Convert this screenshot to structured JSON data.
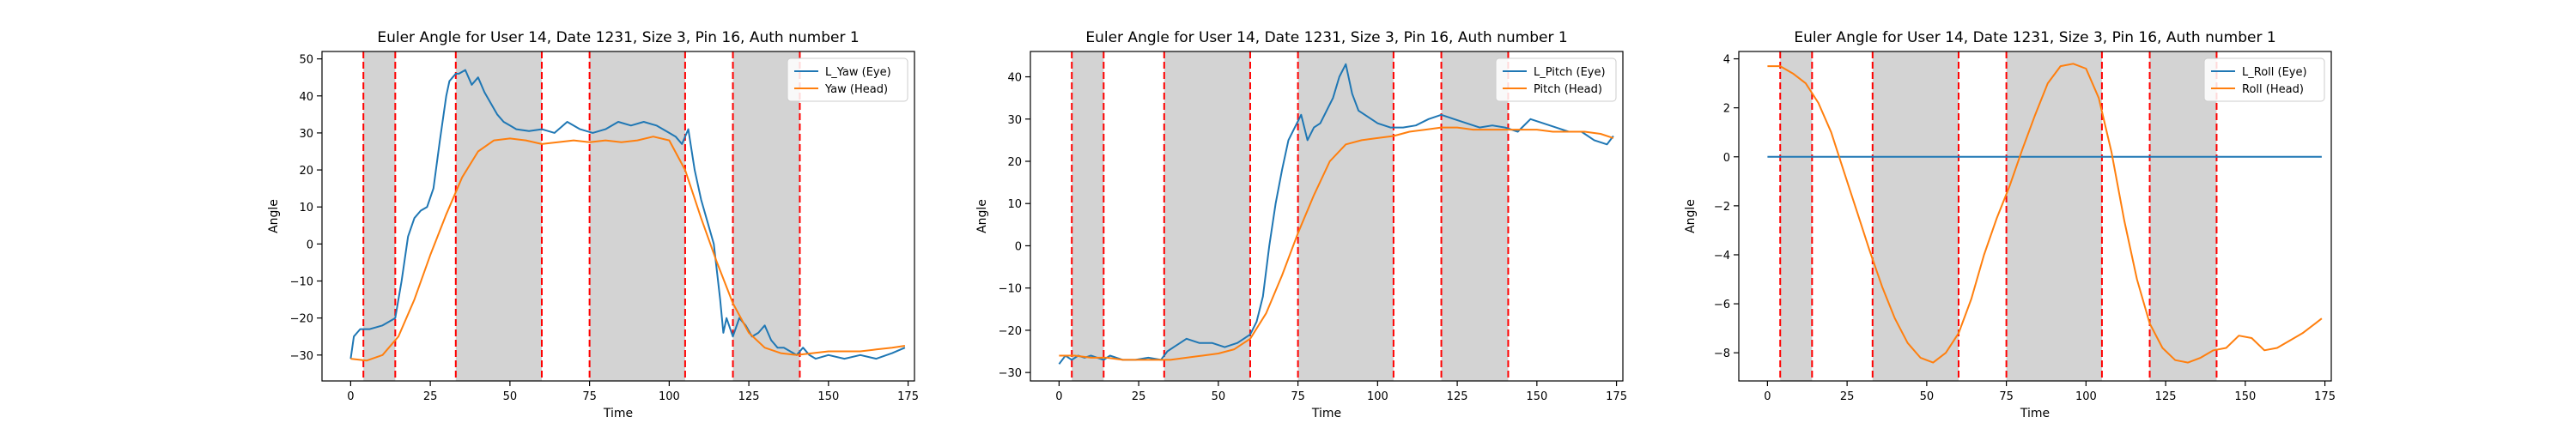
{
  "chart_data": [
    {
      "type": "line",
      "title": "Euler Angle for User 14, Date 1231, Size 3, Pin 16, Auth number 1",
      "xlabel": "Time",
      "ylabel": "Angle",
      "xlim": [
        -9,
        177
      ],
      "ylim": [
        -37,
        52
      ],
      "xticks": [
        0,
        25,
        50,
        75,
        100,
        125,
        150,
        175
      ],
      "yticks": [
        -30,
        -20,
        -10,
        0,
        10,
        20,
        30,
        40,
        50
      ],
      "legend_position": "top-right",
      "shaded_intervals": [
        [
          4,
          14
        ],
        [
          33,
          60
        ],
        [
          75,
          105
        ],
        [
          120,
          141
        ]
      ],
      "series": [
        {
          "name": "L_Yaw (Eye)",
          "color": "#1f77b4",
          "x": [
            0,
            1,
            2,
            3,
            4,
            6,
            8,
            10,
            12,
            14,
            16,
            18,
            20,
            22,
            24,
            26,
            28,
            30,
            31,
            32,
            33,
            34,
            36,
            38,
            40,
            42,
            44,
            46,
            48,
            50,
            52,
            56,
            60,
            64,
            68,
            72,
            76,
            80,
            84,
            88,
            92,
            96,
            100,
            102,
            104,
            106,
            108,
            110,
            112,
            114,
            116,
            117,
            118,
            120,
            122,
            124,
            126,
            128,
            130,
            132,
            134,
            136,
            138,
            140,
            142,
            144,
            146,
            150,
            155,
            160,
            165,
            170,
            174
          ],
          "y": [
            -31,
            -25,
            -24,
            -23,
            -23,
            -23,
            -22.5,
            -22,
            -21,
            -20,
            -10,
            2,
            7,
            9,
            10,
            15,
            28,
            40,
            44,
            45,
            46,
            46,
            47,
            43,
            45,
            41,
            38,
            35,
            33,
            32,
            31,
            30.5,
            31,
            30,
            33,
            31,
            30,
            31,
            33,
            32,
            33,
            32,
            30,
            29,
            27,
            31,
            20,
            12,
            6,
            0,
            -15,
            -24,
            -20,
            -25,
            -20,
            -22,
            -25,
            -24,
            -22,
            -26,
            -28,
            -28,
            -29,
            -30,
            -28,
            -30,
            -31,
            -30,
            -31,
            -30,
            -31,
            -29.5,
            -28
          ]
        },
        {
          "name": "Yaw (Head)",
          "color": "#ff7f0e",
          "x": [
            0,
            5,
            10,
            15,
            20,
            25,
            30,
            35,
            40,
            45,
            50,
            55,
            60,
            65,
            70,
            75,
            80,
            85,
            90,
            95,
            100,
            105,
            110,
            115,
            120,
            125,
            130,
            135,
            140,
            145,
            150,
            155,
            160,
            165,
            170,
            174
          ],
          "y": [
            -31,
            -31.5,
            -30,
            -25,
            -15,
            -3,
            8,
            18,
            25,
            28,
            28.5,
            28,
            27,
            27.5,
            28,
            27.5,
            28,
            27.5,
            28,
            29,
            28,
            20,
            7,
            -5,
            -16,
            -24,
            -28,
            -29.5,
            -30,
            -29.5,
            -29,
            -29,
            -29,
            -28.5,
            -28,
            -27.5
          ]
        }
      ]
    },
    {
      "type": "line",
      "title": "Euler Angle for User 14, Date 1231, Size 3, Pin 16, Auth number 1",
      "xlabel": "Time",
      "ylabel": "Angle",
      "xlim": [
        -9,
        177
      ],
      "ylim": [
        -32,
        46
      ],
      "xticks": [
        0,
        25,
        50,
        75,
        100,
        125,
        150,
        175
      ],
      "yticks": [
        -30,
        -20,
        -10,
        0,
        10,
        20,
        30,
        40
      ],
      "legend_position": "top-right",
      "shaded_intervals": [
        [
          4,
          14
        ],
        [
          33,
          60
        ],
        [
          75,
          105
        ],
        [
          120,
          141
        ]
      ],
      "series": [
        {
          "name": "L_Pitch (Eye)",
          "color": "#1f77b4",
          "x": [
            0,
            2,
            4,
            6,
            8,
            10,
            12,
            14,
            16,
            18,
            20,
            24,
            28,
            32,
            34,
            36,
            38,
            40,
            44,
            48,
            52,
            56,
            58,
            60,
            62,
            64,
            66,
            68,
            70,
            72,
            74,
            76,
            78,
            80,
            82,
            84,
            86,
            88,
            90,
            92,
            94,
            96,
            100,
            104,
            108,
            112,
            116,
            120,
            124,
            128,
            132,
            136,
            140,
            144,
            148,
            152,
            156,
            160,
            164,
            168,
            172,
            174
          ],
          "y": [
            -28,
            -26,
            -27,
            -26,
            -26.5,
            -26,
            -26.5,
            -27,
            -26,
            -26.5,
            -27,
            -27,
            -26.5,
            -27,
            -25,
            -24,
            -23,
            -22,
            -23,
            -23,
            -24,
            -23,
            -22,
            -21,
            -18,
            -12,
            0,
            10,
            18,
            25,
            28,
            31,
            25,
            28,
            29,
            32,
            35,
            40,
            43,
            36,
            32,
            31,
            29,
            28,
            28,
            28.5,
            30,
            31,
            30,
            29,
            28,
            28.5,
            28,
            27,
            30,
            29,
            28,
            27,
            27,
            25,
            24,
            26
          ]
        },
        {
          "name": "Pitch (Head)",
          "color": "#ff7f0e",
          "x": [
            0,
            5,
            10,
            15,
            20,
            25,
            30,
            35,
            40,
            45,
            50,
            55,
            60,
            65,
            70,
            75,
            80,
            85,
            90,
            95,
            100,
            105,
            110,
            115,
            120,
            125,
            130,
            135,
            140,
            145,
            150,
            155,
            160,
            165,
            170,
            174
          ],
          "y": [
            -26,
            -26,
            -26.5,
            -26.5,
            -27,
            -27,
            -27,
            -27,
            -26.5,
            -26,
            -25.5,
            -24.5,
            -22,
            -16,
            -7,
            3,
            12,
            20,
            24,
            25,
            25.5,
            26,
            27,
            27.5,
            28,
            28,
            27.5,
            27.5,
            27.5,
            27.5,
            27.5,
            27,
            27,
            27,
            26.5,
            25.5
          ]
        }
      ]
    },
    {
      "type": "line",
      "title": "Euler Angle for User 14, Date 1231, Size 3, Pin 16, Auth number 1",
      "xlabel": "Time",
      "ylabel": "Angle",
      "xlim": [
        -9,
        177
      ],
      "ylim": [
        -9.15,
        4.3
      ],
      "xticks": [
        0,
        25,
        50,
        75,
        100,
        125,
        150,
        175
      ],
      "yticks": [
        -8,
        -6,
        -4,
        -2,
        0,
        2,
        4
      ],
      "legend_position": "top-right",
      "shaded_intervals": [
        [
          4,
          14
        ],
        [
          33,
          60
        ],
        [
          75,
          105
        ],
        [
          120,
          141
        ]
      ],
      "series": [
        {
          "name": "L_Roll (Eye)",
          "color": "#1f77b4",
          "x": [
            0,
            174
          ],
          "y": [
            0,
            0
          ]
        },
        {
          "name": "Roll (Head)",
          "color": "#ff7f0e",
          "x": [
            0,
            4,
            8,
            12,
            16,
            20,
            24,
            28,
            32,
            36,
            40,
            44,
            48,
            52,
            56,
            60,
            64,
            68,
            72,
            76,
            80,
            84,
            88,
            92,
            96,
            100,
            104,
            108,
            112,
            116,
            120,
            124,
            128,
            132,
            136,
            140,
            144,
            148,
            152,
            156,
            160,
            164,
            168,
            172,
            174
          ],
          "y": [
            3.7,
            3.7,
            3.4,
            3.0,
            2.2,
            1.0,
            -0.6,
            -2.2,
            -3.8,
            -5.3,
            -6.6,
            -7.6,
            -8.2,
            -8.4,
            -8.0,
            -7.2,
            -5.8,
            -4.0,
            -2.5,
            -1.2,
            0.3,
            1.7,
            3.0,
            3.7,
            3.8,
            3.6,
            2.4,
            0.2,
            -2.6,
            -5.0,
            -6.8,
            -7.8,
            -8.3,
            -8.4,
            -8.2,
            -7.9,
            -7.8,
            -7.3,
            -7.4,
            -7.9,
            -7.8,
            -7.5,
            -7.2,
            -6.8,
            -6.6
          ]
        }
      ]
    }
  ]
}
